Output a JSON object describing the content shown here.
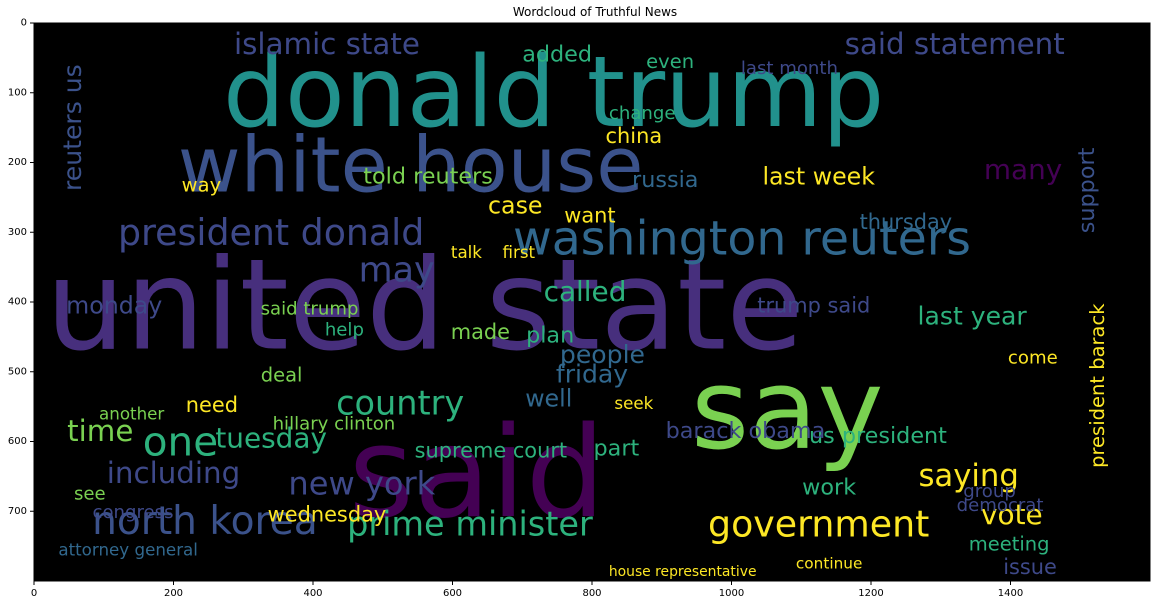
{
  "chart_data": {
    "type": "wordcloud",
    "title": "Wordcloud of Truthful News",
    "xlim": [
      0,
      1600
    ],
    "ylim": [
      800,
      0
    ],
    "xticks": [
      0,
      200,
      400,
      600,
      800,
      1000,
      1200,
      1400
    ],
    "yticks": [
      0,
      100,
      200,
      300,
      400,
      500,
      600,
      700
    ],
    "grid": false,
    "background": "#000000",
    "palette": "viridis",
    "words": [
      {
        "text": "donald trump",
        "x": 745,
        "y": 100,
        "size": 140,
        "color": "#21918c"
      },
      {
        "text": "white house",
        "x": 540,
        "y": 205,
        "size": 110,
        "color": "#3b528b"
      },
      {
        "text": "united state",
        "x": 560,
        "y": 405,
        "size": 180,
        "color": "#472f7d"
      },
      {
        "text": "said",
        "x": 635,
        "y": 645,
        "size": 180,
        "color": "#440154"
      },
      {
        "text": "say",
        "x": 1080,
        "y": 555,
        "size": 160,
        "color": "#7ad151"
      },
      {
        "text": "washington reuters",
        "x": 1015,
        "y": 310,
        "size": 68,
        "color": "#31688e"
      },
      {
        "text": "president donald",
        "x": 340,
        "y": 300,
        "size": 52,
        "color": "#3e4989"
      },
      {
        "text": "north korea",
        "x": 245,
        "y": 715,
        "size": 56,
        "color": "#3b528b"
      },
      {
        "text": "prime minister",
        "x": 625,
        "y": 718,
        "size": 48,
        "color": "#2db27d"
      },
      {
        "text": "government",
        "x": 1125,
        "y": 718,
        "size": 52,
        "color": "#fde725"
      },
      {
        "text": "islamic state",
        "x": 420,
        "y": 30,
        "size": 42,
        "color": "#3e4989"
      },
      {
        "text": "said statement",
        "x": 1320,
        "y": 30,
        "size": 42,
        "color": "#3e4989"
      },
      {
        "text": "reuters us",
        "x": 55,
        "y": 150,
        "size": 36,
        "color": "#3b528b",
        "rotate": -90
      },
      {
        "text": "country",
        "x": 525,
        "y": 545,
        "size": 48,
        "color": "#2db27d"
      },
      {
        "text": "new york",
        "x": 470,
        "y": 660,
        "size": 46,
        "color": "#3e4989"
      },
      {
        "text": "including",
        "x": 200,
        "y": 645,
        "size": 42,
        "color": "#3e4989"
      },
      {
        "text": "one",
        "x": 210,
        "y": 600,
        "size": 58,
        "color": "#2db27d"
      },
      {
        "text": "time",
        "x": 95,
        "y": 585,
        "size": 42,
        "color": "#7ad151"
      },
      {
        "text": "tuesday",
        "x": 340,
        "y": 595,
        "size": 40,
        "color": "#2db27d"
      },
      {
        "text": "may",
        "x": 520,
        "y": 355,
        "size": 50,
        "color": "#3e4989"
      },
      {
        "text": "called",
        "x": 790,
        "y": 385,
        "size": 40,
        "color": "#2db27d"
      },
      {
        "text": "monday",
        "x": 115,
        "y": 405,
        "size": 34,
        "color": "#3e4989"
      },
      {
        "text": "last week",
        "x": 1125,
        "y": 220,
        "size": 34,
        "color": "#fde725"
      },
      {
        "text": "told reuters",
        "x": 565,
        "y": 220,
        "size": 32,
        "color": "#7ad151"
      },
      {
        "text": "russia",
        "x": 905,
        "y": 225,
        "size": 32,
        "color": "#31688e"
      },
      {
        "text": "case",
        "x": 690,
        "y": 262,
        "size": 34,
        "color": "#fde725"
      },
      {
        "text": "want",
        "x": 797,
        "y": 276,
        "size": 30,
        "color": "#fde725"
      },
      {
        "text": "many",
        "x": 1418,
        "y": 210,
        "size": 40,
        "color": "#440154"
      },
      {
        "text": "support",
        "x": 1510,
        "y": 240,
        "size": 32,
        "color": "#3b528b",
        "rotate": -90
      },
      {
        "text": "thursday",
        "x": 1250,
        "y": 285,
        "size": 30,
        "color": "#31688e"
      },
      {
        "text": "last year",
        "x": 1345,
        "y": 420,
        "size": 36,
        "color": "#2db27d"
      },
      {
        "text": "trump said",
        "x": 1118,
        "y": 405,
        "size": 30,
        "color": "#3e4989"
      },
      {
        "text": "president barack",
        "x": 1525,
        "y": 520,
        "size": 28,
        "color": "#fde725",
        "rotate": -90
      },
      {
        "text": "us president",
        "x": 1210,
        "y": 592,
        "size": 32,
        "color": "#2db27d"
      },
      {
        "text": "barack obama",
        "x": 1020,
        "y": 585,
        "size": 32,
        "color": "#3e4989"
      },
      {
        "text": "hillary clinton",
        "x": 430,
        "y": 575,
        "size": 26,
        "color": "#7ad151"
      },
      {
        "text": "supreme court",
        "x": 655,
        "y": 613,
        "size": 30,
        "color": "#2db27d"
      },
      {
        "text": "saying",
        "x": 1340,
        "y": 650,
        "size": 44,
        "color": "#fde725"
      },
      {
        "text": "vote",
        "x": 1402,
        "y": 705,
        "size": 40,
        "color": "#fde725"
      },
      {
        "text": "meeting",
        "x": 1398,
        "y": 747,
        "size": 28,
        "color": "#2db27d"
      },
      {
        "text": "group",
        "x": 1370,
        "y": 672,
        "size": 26,
        "color": "#3e4989"
      },
      {
        "text": "people",
        "x": 815,
        "y": 475,
        "size": 36,
        "color": "#31688e"
      },
      {
        "text": "friday",
        "x": 800,
        "y": 503,
        "size": 36,
        "color": "#31688e"
      },
      {
        "text": "plan",
        "x": 740,
        "y": 448,
        "size": 32,
        "color": "#2db27d"
      },
      {
        "text": "made",
        "x": 640,
        "y": 443,
        "size": 30,
        "color": "#7ad151"
      },
      {
        "text": "well",
        "x": 738,
        "y": 538,
        "size": 34,
        "color": "#31688e"
      },
      {
        "text": "part",
        "x": 835,
        "y": 610,
        "size": 32,
        "color": "#2db27d"
      },
      {
        "text": "need",
        "x": 255,
        "y": 548,
        "size": 30,
        "color": "#fde725"
      },
      {
        "text": "wednesday",
        "x": 420,
        "y": 705,
        "size": 30,
        "color": "#fde725"
      },
      {
        "text": "work",
        "x": 1140,
        "y": 666,
        "size": 32,
        "color": "#2db27d"
      },
      {
        "text": "china",
        "x": 860,
        "y": 162,
        "size": 30,
        "color": "#fde725"
      },
      {
        "text": "added",
        "x": 750,
        "y": 45,
        "size": 32,
        "color": "#2db27d"
      },
      {
        "text": "last month",
        "x": 1083,
        "y": 65,
        "size": 26,
        "color": "#3e4989"
      },
      {
        "text": "change",
        "x": 872,
        "y": 130,
        "size": 26,
        "color": "#2db27d"
      },
      {
        "text": "way",
        "x": 240,
        "y": 232,
        "size": 28,
        "color": "#fde725"
      },
      {
        "text": "congress",
        "x": 142,
        "y": 702,
        "size": 26,
        "color": "#3e4989"
      },
      {
        "text": "attorney general",
        "x": 135,
        "y": 755,
        "size": 24,
        "color": "#31688e"
      },
      {
        "text": "issue",
        "x": 1428,
        "y": 780,
        "size": 30,
        "color": "#3e4989"
      },
      {
        "text": "continue",
        "x": 1140,
        "y": 775,
        "size": 22,
        "color": "#fde725"
      },
      {
        "text": "house representative",
        "x": 930,
        "y": 787,
        "size": 20,
        "color": "#fde725"
      },
      {
        "text": "democrat",
        "x": 1385,
        "y": 692,
        "size": 26,
        "color": "#3e4989"
      },
      {
        "text": "come",
        "x": 1432,
        "y": 480,
        "size": 26,
        "color": "#fde725"
      },
      {
        "text": "talk",
        "x": 620,
        "y": 328,
        "size": 24,
        "color": "#fde725"
      },
      {
        "text": "first",
        "x": 695,
        "y": 328,
        "size": 24,
        "color": "#fde725"
      },
      {
        "text": "deal",
        "x": 355,
        "y": 505,
        "size": 28,
        "color": "#7ad151"
      },
      {
        "text": "another",
        "x": 140,
        "y": 560,
        "size": 24,
        "color": "#7ad151"
      },
      {
        "text": "seek",
        "x": 860,
        "y": 545,
        "size": 24,
        "color": "#fde725"
      },
      {
        "text": "said trump",
        "x": 395,
        "y": 410,
        "size": 26,
        "color": "#7ad151"
      },
      {
        "text": "help",
        "x": 445,
        "y": 440,
        "size": 26,
        "color": "#2db27d"
      },
      {
        "text": "see",
        "x": 80,
        "y": 675,
        "size": 26,
        "color": "#7ad151"
      },
      {
        "text": "even",
        "x": 912,
        "y": 55,
        "size": 28,
        "color": "#2db27d"
      }
    ]
  }
}
